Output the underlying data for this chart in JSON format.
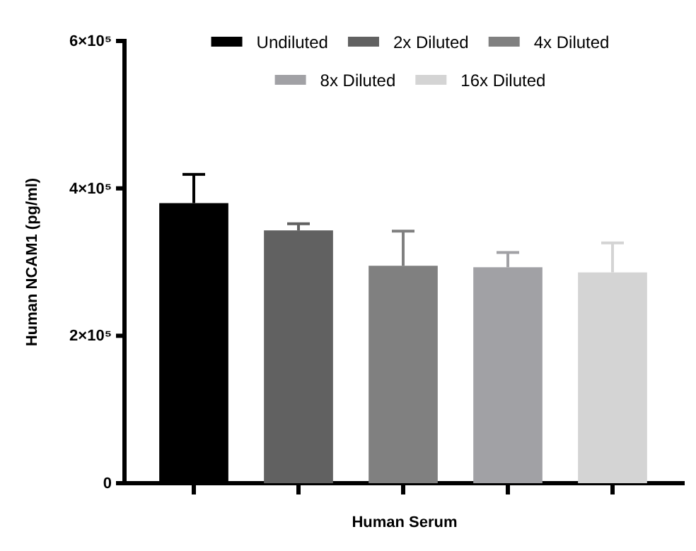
{
  "chart_data": {
    "type": "bar",
    "xlabel": "Human Serum",
    "ylabel": "Human NCAM1 (pg/ml)",
    "categories": [
      null,
      null,
      null,
      null,
      null
    ],
    "series": [
      {
        "name": "Undiluted",
        "color": "#000000",
        "values": [
          380000,
          null,
          null,
          null,
          null
        ],
        "errors": [
          [
            380000,
            419000
          ],
          null,
          null,
          null,
          null
        ]
      },
      {
        "name": "2x Diluted",
        "color": "#616161",
        "values": [
          null,
          343000,
          null,
          null,
          null
        ],
        "errors": [
          null,
          [
            343000,
            352000
          ],
          null,
          null,
          null
        ]
      },
      {
        "name": "4x Diluted",
        "color": "#808080",
        "values": [
          null,
          null,
          295000,
          null,
          null
        ],
        "errors": [
          null,
          null,
          [
            295000,
            342000
          ],
          null,
          null
        ]
      },
      {
        "name": "8x Diluted",
        "color": "#a1a1a5",
        "values": [
          null,
          null,
          null,
          293000,
          null
        ],
        "errors": [
          null,
          null,
          null,
          [
            293000,
            313000
          ],
          null
        ]
      },
      {
        "name": "16x Diluted",
        "color": "#d4d4d4",
        "values": [
          null,
          null,
          null,
          null,
          286000
        ],
        "errors": [
          null,
          null,
          null,
          null,
          [
            286000,
            326000
          ]
        ]
      }
    ],
    "ylim": [
      0,
      600000
    ],
    "yticks": [
      0,
      {
        "value": 200000,
        "label": "2×10⁵"
      },
      {
        "value": 400000,
        "label": "4×10⁵"
      },
      {
        "value": 600000,
        "label": "6×10⁵"
      }
    ],
    "grid": false,
    "legend": "top"
  }
}
